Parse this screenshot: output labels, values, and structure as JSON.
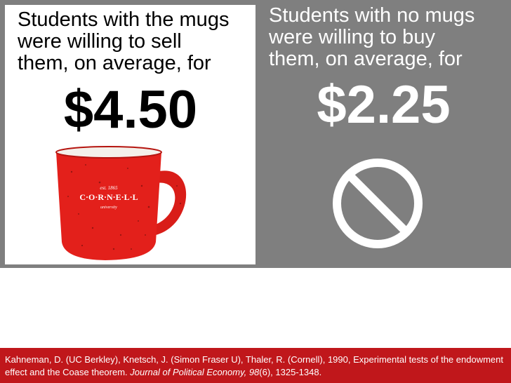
{
  "left_panel": {
    "line1": "Students with the mugs",
    "line2": "were willing to sell",
    "line3": "them, on average, for",
    "price": "$4.50",
    "mug_text": {
      "top": "est. 1865",
      "brand": "C·O·R·N·E·L·L",
      "bottom": "university"
    }
  },
  "right_panel": {
    "line1": "Students with no mugs",
    "line2": "were willing to buy",
    "line3": "them, on average, for",
    "price": "$2.25",
    "icon": "prohibited-icon"
  },
  "footer": {
    "part1": "Kahneman, D. (UC Berkley), Knetsch, J. (Simon Fraser U), Thaler, R. (Cornell), 1990, Experimental tests of the endowment effect and the Coase theorem. ",
    "journal": "Journal of Political Economy, 98",
    "part2": "(6), 1325-1348."
  },
  "colors": {
    "background_gray": "#7f7f7f",
    "footer_red": "#c0171b",
    "mug_red": "#e3201b"
  }
}
